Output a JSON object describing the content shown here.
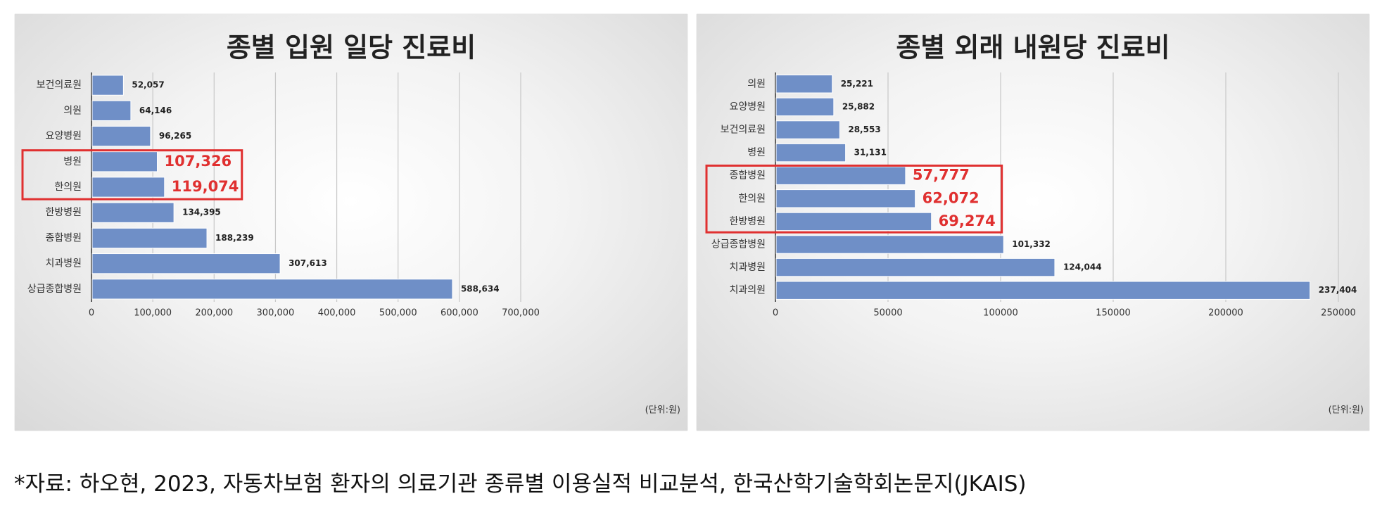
{
  "chart_data": [
    {
      "type": "bar",
      "orientation": "horizontal",
      "title": "종별 입원 일당 진료비",
      "unit_note": "(단위:원)",
      "categories": [
        "보건의료원",
        "의원",
        "요양병원",
        "병원",
        "한의원",
        "한방병원",
        "종합병원",
        "치과병원",
        "상급종합병원"
      ],
      "values": [
        52057,
        64146,
        96265,
        107326,
        119074,
        134395,
        188239,
        307613,
        588634
      ],
      "value_labels": [
        "52,057",
        "64,146",
        "96,265",
        "107,326",
        "119,074",
        "134,395",
        "188,239",
        "307,613",
        "588,634"
      ],
      "highlighted_categories": [
        "병원",
        "한의원"
      ],
      "xlim": [
        0,
        700000
      ],
      "xticks": [
        0,
        100000,
        200000,
        300000,
        400000,
        500000,
        600000,
        700000
      ],
      "xtick_labels": [
        "0",
        "100,000",
        "200,000",
        "300,000",
        "400,000",
        "500,000",
        "600,000",
        "700,000"
      ],
      "grid": true,
      "bar_color": "#6f8fc7",
      "highlight_color": "#e03030"
    },
    {
      "type": "bar",
      "orientation": "horizontal",
      "title": "종별 외래 내원당 진료비",
      "unit_note": "(단위:원)",
      "categories": [
        "의원",
        "요양병원",
        "보건의료원",
        "병원",
        "종합병원",
        "한의원",
        "한방병원",
        "상급종합병원",
        "치과병원",
        "치과의원"
      ],
      "values": [
        25221,
        25882,
        28553,
        31131,
        57777,
        62072,
        69274,
        101332,
        124044,
        237404
      ],
      "value_labels": [
        "25,221",
        "25,882",
        "28,553",
        "31,131",
        "57,777",
        "62,072",
        "69,274",
        "101,332",
        "124,044",
        "237,404"
      ],
      "highlighted_categories": [
        "종합병원",
        "한의원",
        "한방병원"
      ],
      "xlim": [
        0,
        250000
      ],
      "xticks": [
        0,
        50000,
        100000,
        150000,
        200000,
        250000
      ],
      "xtick_labels": [
        "0",
        "50000",
        "100000",
        "150000",
        "200000",
        "250000"
      ],
      "grid": true,
      "bar_color": "#6f8fc7",
      "highlight_color": "#e03030"
    }
  ],
  "source_text": "*자료: 하오현, 2023, 자동차보험 환자의 의료기관 종류별 이용실적 비교분석, 한국산학기술학회논문지(JKAIS)"
}
